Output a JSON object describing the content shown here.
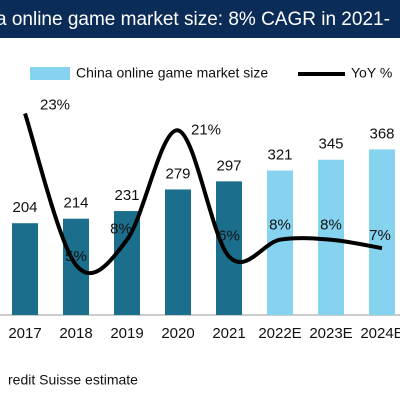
{
  "chart_data": {
    "type": "bar_line",
    "title": "a online game market size: 8% CAGR in 2021-",
    "footnote": "redit Suisse estimate",
    "categories": [
      "2017",
      "2018",
      "2019",
      "2020",
      "2021",
      "2022E",
      "2023E",
      "2024E"
    ],
    "series": [
      {
        "name": "China online game market size",
        "type": "bar",
        "colors": [
          "#1b6f8c",
          "#1b6f8c",
          "#1b6f8c",
          "#1b6f8c",
          "#1b6f8c",
          "#86d3f0",
          "#86d3f0",
          "#86d3f0"
        ],
        "color": "#86d3f0",
        "values": [
          204,
          214,
          231,
          279,
          297,
          321,
          345,
          368
        ]
      },
      {
        "name": "YoY %",
        "type": "line",
        "axis": "y2",
        "color": "#000000",
        "values": [
          23,
          5,
          8,
          21,
          6,
          8,
          8,
          7
        ],
        "value_labels": [
          "23%",
          "5%",
          "8%",
          "21%",
          "6%",
          "8%",
          "8%",
          "7%"
        ]
      }
    ],
    "ylim": [
      0,
      700
    ],
    "y2lim": [
      0,
      36.5
    ]
  }
}
